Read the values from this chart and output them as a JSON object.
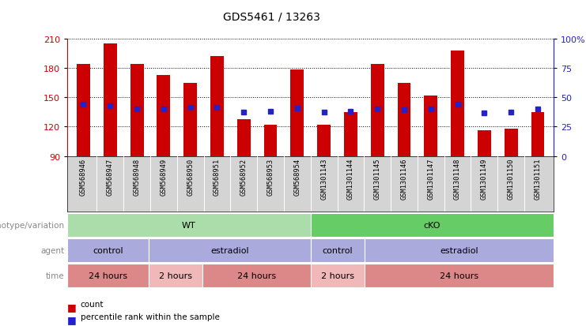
{
  "title": "GDS5461 / 13263",
  "samples": [
    "GSM568946",
    "GSM568947",
    "GSM568948",
    "GSM568949",
    "GSM568950",
    "GSM568951",
    "GSM568952",
    "GSM568953",
    "GSM568954",
    "GSM1301143",
    "GSM1301144",
    "GSM1301145",
    "GSM1301146",
    "GSM1301147",
    "GSM1301148",
    "GSM1301149",
    "GSM1301150",
    "GSM1301151"
  ],
  "count_values": [
    184,
    205,
    184,
    173,
    165,
    192,
    128,
    122,
    178,
    122,
    135,
    184,
    165,
    152,
    198,
    116,
    118,
    135
  ],
  "percentile_values": [
    143,
    141,
    138,
    138,
    140,
    140,
    135,
    136,
    139,
    135,
    136,
    138,
    137,
    138,
    143,
    134,
    135,
    138
  ],
  "ymin": 90,
  "ymax": 210,
  "yticks_left": [
    90,
    120,
    150,
    180,
    210
  ],
  "bar_color": "#cc0000",
  "percentile_color": "#2222cc",
  "bar_width": 0.5,
  "genotype_groups": [
    {
      "label": "WT",
      "start": 0,
      "end": 8,
      "color": "#aaddaa"
    },
    {
      "label": "cKO",
      "start": 9,
      "end": 17,
      "color": "#66cc66"
    }
  ],
  "agent_groups": [
    {
      "label": "control",
      "start": 0,
      "end": 2,
      "color": "#aaaadd"
    },
    {
      "label": "estradiol",
      "start": 3,
      "end": 8,
      "color": "#aaaadd"
    },
    {
      "label": "control",
      "start": 9,
      "end": 10,
      "color": "#aaaadd"
    },
    {
      "label": "estradiol",
      "start": 11,
      "end": 17,
      "color": "#aaaadd"
    }
  ],
  "time_groups": [
    {
      "label": "24 hours",
      "start": 0,
      "end": 2,
      "color": "#dd8888"
    },
    {
      "label": "2 hours",
      "start": 3,
      "end": 4,
      "color": "#f0b8b8"
    },
    {
      "label": "24 hours",
      "start": 5,
      "end": 8,
      "color": "#dd8888"
    },
    {
      "label": "2 hours",
      "start": 9,
      "end": 10,
      "color": "#f0b8b8"
    },
    {
      "label": "24 hours",
      "start": 11,
      "end": 17,
      "color": "#dd8888"
    }
  ],
  "axis_color_left": "#cc0000",
  "axis_color_right": "#2222cc",
  "grid_color": "#000000",
  "xticklabel_bg": "#d4d4d4",
  "row_label_color": "#888888",
  "row_text_color": "#333333"
}
